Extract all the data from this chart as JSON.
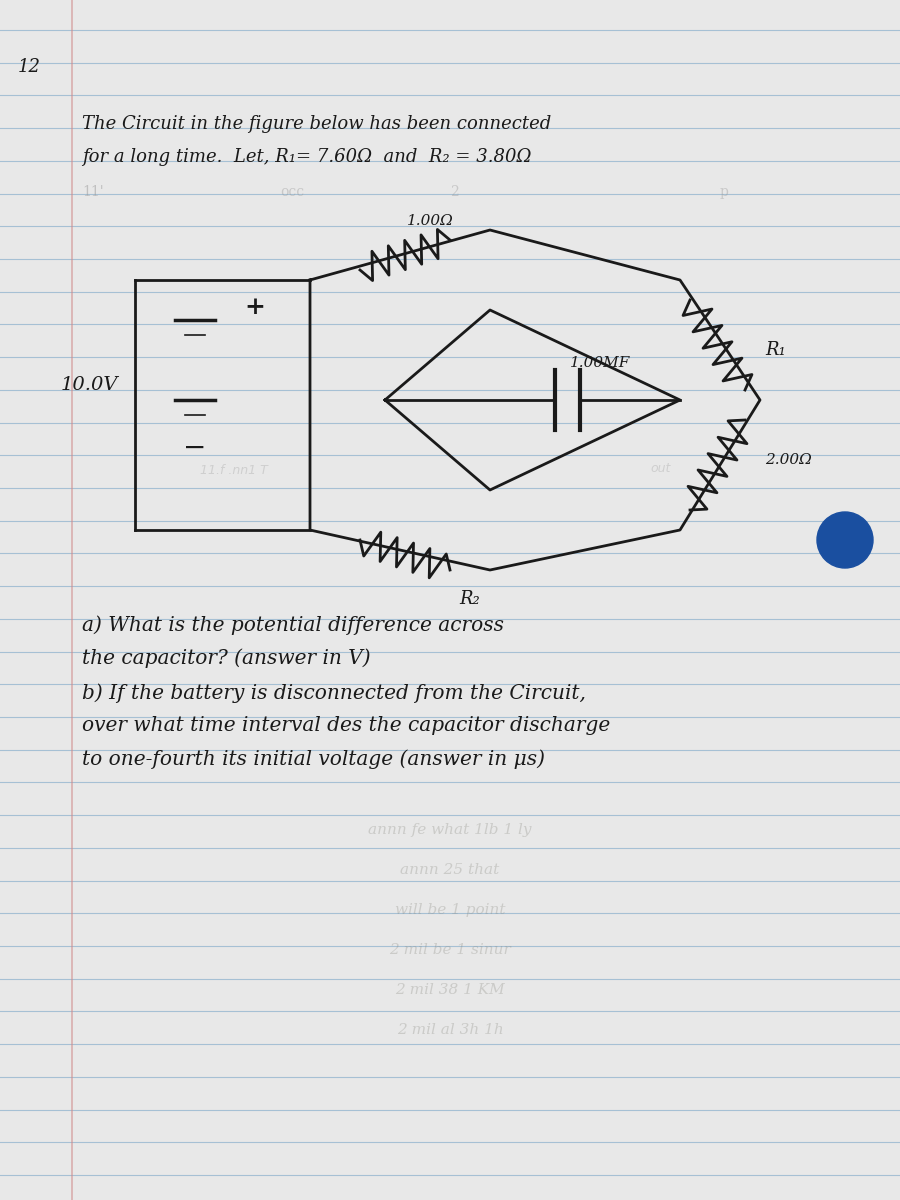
{
  "bg_color": "#e8e8e8",
  "line_color": "#8ab0cc",
  "text_color": "#1a1a1a",
  "title_line1": "The Circuit in the figure below has been connected",
  "title_line2": "for a long time.  Let, R₁= 7.60Ω  and  R₂ = 3.80Ω",
  "battery_label": "10.0V",
  "r1_label": "R₁",
  "r2_label": "R₂",
  "resistor1_label": "1.00Ω",
  "capacitor_label": "1.00MF",
  "bottom_resistor_label": "2.00Ω",
  "question_a_line1": "a) What is the potential difference across",
  "question_a_line2": "the capacitor? (answer in V)",
  "question_b_line1": "b) If the battery is disconnected from the Circuit,",
  "question_b_line2": "over what time interval des the capacitor discharge",
  "question_b_line3": "to one-fourth its initial voltage (answer in μs)",
  "page_num": "12",
  "dot_color": "#1a4fa0",
  "n_ruled_lines": 36
}
